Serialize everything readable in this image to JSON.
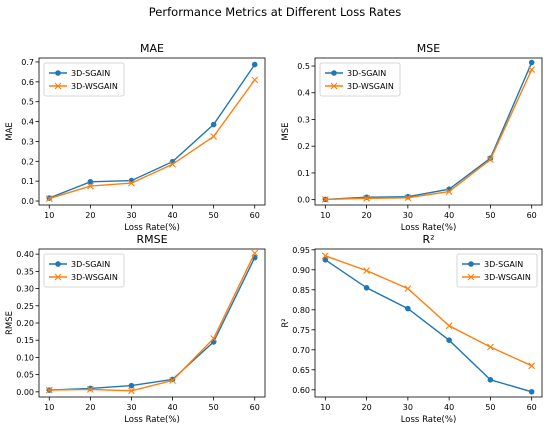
{
  "figure": {
    "suptitle": "Performance Metrics at Different Loss Rates"
  },
  "colors": {
    "sgain": "#1f77b4",
    "wsgain": "#ff7f0e"
  },
  "chart_data": [
    {
      "type": "line",
      "title": "MAE",
      "xlabel": "Loss Rate(%)",
      "ylabel": "MAE",
      "x": [
        10,
        20,
        30,
        40,
        50,
        60
      ],
      "xticks": [
        "10",
        "20",
        "30",
        "40",
        "50",
        "60"
      ],
      "xlim": [
        7.5,
        62.5
      ],
      "ylim": [
        -0.02,
        0.72
      ],
      "yticks": [
        "0.0",
        "0.1",
        "0.2",
        "0.3",
        "0.4",
        "0.5",
        "0.6",
        "0.7"
      ],
      "ytick_values": [
        0,
        0.1,
        0.2,
        0.3,
        0.4,
        0.5,
        0.6,
        0.7
      ],
      "legend_position": "upper-left",
      "series": [
        {
          "name": "3D-SGAIN",
          "marker": "circle",
          "values": [
            0.015,
            0.097,
            0.103,
            0.198,
            0.385,
            0.687
          ]
        },
        {
          "name": "3D-WSGAIN",
          "marker": "x",
          "values": [
            0.012,
            0.075,
            0.09,
            0.185,
            0.325,
            0.61
          ]
        }
      ]
    },
    {
      "type": "line",
      "title": "MSE",
      "xlabel": "Loss Rate(%)",
      "ylabel": "MSE",
      "x": [
        10,
        20,
        30,
        40,
        50,
        60
      ],
      "xticks": [
        "10",
        "20",
        "30",
        "40",
        "50",
        "60"
      ],
      "xlim": [
        7.5,
        62.5
      ],
      "ylim": [
        -0.02,
        0.53
      ],
      "yticks": [
        "0.0",
        "0.1",
        "0.2",
        "0.3",
        "0.4",
        "0.5"
      ],
      "ytick_values": [
        0,
        0.1,
        0.2,
        0.3,
        0.4,
        0.5
      ],
      "legend_position": "upper-left",
      "series": [
        {
          "name": "3D-SGAIN",
          "marker": "circle",
          "values": [
            0.001,
            0.009,
            0.011,
            0.039,
            0.155,
            0.513
          ]
        },
        {
          "name": "3D-WSGAIN",
          "marker": "x",
          "values": [
            0.001,
            0.005,
            0.007,
            0.03,
            0.15,
            0.487
          ]
        }
      ]
    },
    {
      "type": "line",
      "title": "RMSE",
      "xlabel": "Loss Rate(%)",
      "ylabel": "RMSE",
      "x": [
        10,
        20,
        30,
        40,
        50,
        60
      ],
      "xticks": [
        "10",
        "20",
        "30",
        "40",
        "50",
        "60"
      ],
      "xlim": [
        7.5,
        62.5
      ],
      "ylim": [
        -0.015,
        0.415
      ],
      "yticks": [
        "0.00",
        "0.05",
        "0.10",
        "0.15",
        "0.20",
        "0.25",
        "0.30",
        "0.35",
        "0.40"
      ],
      "ytick_values": [
        0,
        0.05,
        0.1,
        0.15,
        0.2,
        0.25,
        0.3,
        0.35,
        0.4
      ],
      "legend_position": "upper-left",
      "series": [
        {
          "name": "3D-SGAIN",
          "marker": "circle",
          "values": [
            0.005,
            0.01,
            0.018,
            0.036,
            0.145,
            0.39
          ]
        },
        {
          "name": "3D-WSGAIN",
          "marker": "x",
          "values": [
            0.005,
            0.007,
            0.003,
            0.033,
            0.155,
            0.403
          ]
        }
      ]
    },
    {
      "type": "line",
      "title": "R²",
      "xlabel": "Loss Rate(%)",
      "ylabel": "R²",
      "x": [
        10,
        20,
        30,
        40,
        50,
        60
      ],
      "xticks": [
        "10",
        "20",
        "30",
        "40",
        "50",
        "60"
      ],
      "xlim": [
        7.5,
        62.5
      ],
      "ylim": [
        0.582,
        0.952
      ],
      "yticks": [
        "0.60",
        "0.65",
        "0.70",
        "0.75",
        "0.80",
        "0.85",
        "0.90",
        "0.95"
      ],
      "ytick_values": [
        0.6,
        0.65,
        0.7,
        0.75,
        0.8,
        0.85,
        0.9,
        0.95
      ],
      "legend_position": "upper-right",
      "series": [
        {
          "name": "3D-SGAIN",
          "marker": "circle",
          "values": [
            0.925,
            0.855,
            0.803,
            0.724,
            0.625,
            0.595
          ]
        },
        {
          "name": "3D-WSGAIN",
          "marker": "x",
          "values": [
            0.935,
            0.898,
            0.853,
            0.76,
            0.707,
            0.66
          ]
        }
      ]
    }
  ]
}
